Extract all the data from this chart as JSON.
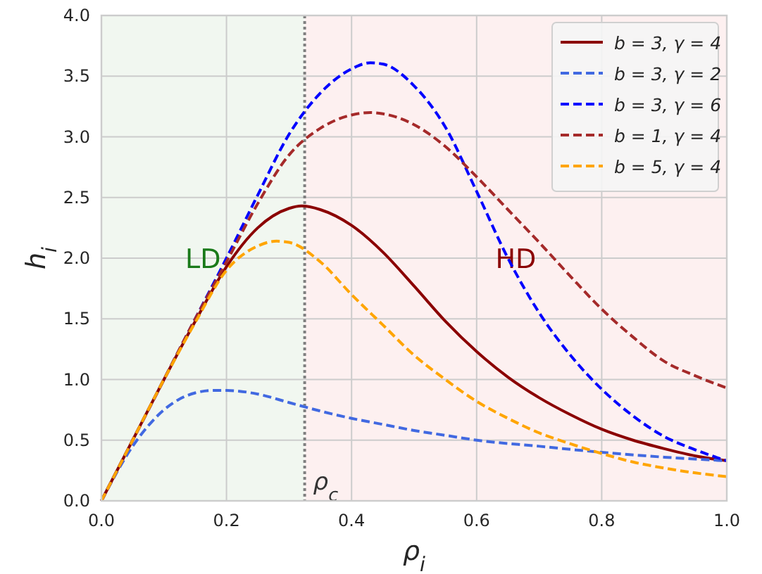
{
  "chart_data": {
    "type": "line",
    "xlabel": "ρ$_{i}$",
    "ylabel": "h$_{i}$",
    "xlim": [
      0,
      1
    ],
    "ylim": [
      0,
      4
    ],
    "xticks": [
      {
        "value": 0,
        "label": "0.0"
      },
      {
        "value": 0.2,
        "label": "0.2"
      },
      {
        "value": 0.4,
        "label": "0.4"
      },
      {
        "value": 0.6,
        "label": "0.6"
      },
      {
        "value": 0.8,
        "label": "0.8"
      },
      {
        "value": 1,
        "label": "1.0"
      }
    ],
    "yticks": [
      {
        "value": 0,
        "label": "0.0"
      },
      {
        "value": 0.5,
        "label": "0.5"
      },
      {
        "value": 1,
        "label": "1.0"
      },
      {
        "value": 1.5,
        "label": "1.5"
      },
      {
        "value": 2,
        "label": "2.0"
      },
      {
        "value": 2.5,
        "label": "2.5"
      },
      {
        "value": 3,
        "label": "3.0"
      },
      {
        "value": 3.5,
        "label": "3.5"
      },
      {
        "value": 4,
        "label": "4.0"
      }
    ],
    "grid": true,
    "legend": "top right",
    "bands": [
      {
        "axis": "x",
        "from": 0,
        "to": 0.325,
        "label": "LD",
        "color": "#f1f7f0"
      },
      {
        "axis": "x",
        "from": 0.325,
        "to": 1,
        "label": "HD",
        "color": "#fdf0f0"
      }
    ],
    "ref_lines": [
      {
        "axis": "x",
        "value": 0.325,
        "label": "ρ$_{c}$",
        "color": "#808080",
        "line_style": "dotted"
      }
    ],
    "series": [
      {
        "name": "b = 3, γ = 4",
        "color": "#8b0000",
        "line_style": "solid",
        "x": [
          0,
          0.05,
          0.1,
          0.15,
          0.2,
          0.25,
          0.3,
          0.32,
          0.35,
          0.4,
          0.45,
          0.5,
          0.55,
          0.6,
          0.65,
          0.7,
          0.75,
          0.8,
          0.85,
          0.9,
          0.95,
          1
        ],
        "values": [
          0,
          0.5,
          1,
          1.48,
          1.93,
          2.25,
          2.41,
          2.43,
          2.4,
          2.27,
          2.05,
          1.77,
          1.48,
          1.23,
          1.02,
          0.85,
          0.71,
          0.59,
          0.5,
          0.43,
          0.37,
          0.33
        ]
      },
      {
        "name": "b = 3, γ = 2",
        "color": "#4169e1",
        "line_style": "dashed",
        "x": [
          0,
          0.05,
          0.1,
          0.15,
          0.18,
          0.2,
          0.25,
          0.3,
          0.35,
          0.4,
          0.45,
          0.5,
          0.55,
          0.6,
          0.7,
          0.8,
          0.9,
          1
        ],
        "values": [
          0,
          0.45,
          0.75,
          0.89,
          0.91,
          0.91,
          0.88,
          0.81,
          0.74,
          0.68,
          0.63,
          0.58,
          0.54,
          0.5,
          0.45,
          0.4,
          0.36,
          0.33
        ]
      },
      {
        "name": "b = 3, γ = 6",
        "color": "#0000ff",
        "line_style": "dashed",
        "x": [
          0,
          0.05,
          0.1,
          0.15,
          0.2,
          0.25,
          0.3,
          0.35,
          0.4,
          0.43,
          0.45,
          0.5,
          0.55,
          0.6,
          0.65,
          0.7,
          0.75,
          0.8,
          0.85,
          0.9,
          0.95,
          1
        ],
        "values": [
          0,
          0.5,
          1,
          1.5,
          2,
          2.52,
          3.02,
          3.36,
          3.56,
          3.61,
          3.6,
          3.42,
          3.08,
          2.55,
          2,
          1.55,
          1.2,
          0.92,
          0.7,
          0.53,
          0.42,
          0.33
        ]
      },
      {
        "name": "b = 1, γ = 4",
        "color": "#a52a2a",
        "line_style": "dashed",
        "x": [
          0,
          0.05,
          0.1,
          0.15,
          0.2,
          0.25,
          0.3,
          0.35,
          0.4,
          0.43,
          0.45,
          0.5,
          0.55,
          0.6,
          0.65,
          0.7,
          0.75,
          0.8,
          0.85,
          0.9,
          0.95,
          1
        ],
        "values": [
          0,
          0.5,
          1,
          1.5,
          1.97,
          2.45,
          2.85,
          3.07,
          3.18,
          3.2,
          3.19,
          3.1,
          2.92,
          2.67,
          2.4,
          2.13,
          1.85,
          1.58,
          1.35,
          1.15,
          1.03,
          0.93
        ]
      },
      {
        "name": "b = 5, γ = 4",
        "color": "#ffa500",
        "line_style": "dashed",
        "x": [
          0,
          0.05,
          0.1,
          0.15,
          0.2,
          0.25,
          0.28,
          0.3,
          0.35,
          0.4,
          0.45,
          0.5,
          0.55,
          0.6,
          0.65,
          0.7,
          0.75,
          0.8,
          0.85,
          0.9,
          0.95,
          1
        ],
        "values": [
          0,
          0.5,
          1,
          1.47,
          1.9,
          2.1,
          2.14,
          2.13,
          1.97,
          1.7,
          1.45,
          1.2,
          1,
          0.82,
          0.68,
          0.56,
          0.47,
          0.39,
          0.32,
          0.27,
          0.23,
          0.2
        ]
      }
    ]
  }
}
